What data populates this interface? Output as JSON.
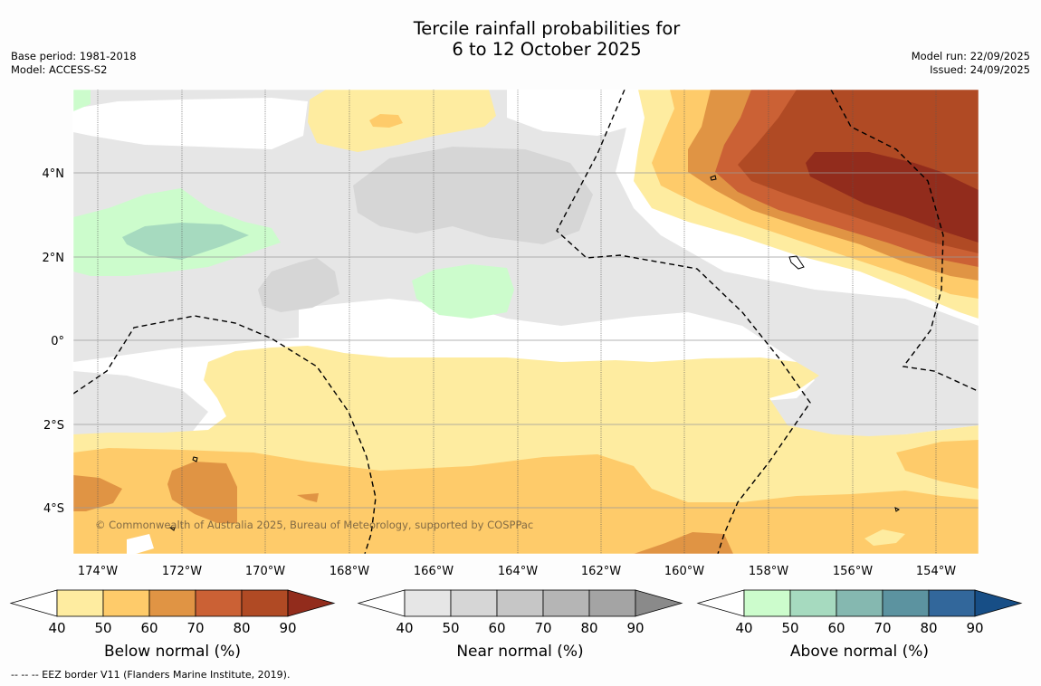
{
  "title": {
    "line1": "Tercile rainfall probabilities for",
    "line2": "6 to 12 October 2025"
  },
  "meta": {
    "base_period": "Base period: 1981-2018",
    "model": "Model: ACCESS-S2",
    "model_run": "Model run: 22/09/2025",
    "issued": "Issued: 24/09/2025"
  },
  "map": {
    "lon_ticks": [
      "174°W",
      "172°W",
      "170°W",
      "168°W",
      "166°W",
      "164°W",
      "162°W",
      "160°W",
      "158°W",
      "156°W",
      "154°W"
    ],
    "lat_ticks": [
      "4°N",
      "2°N",
      "0°",
      "2°S",
      "4°S"
    ],
    "copyright": "© Commonwealth of Australia 2025, Bureau of Meteorology, supported by COSPPac"
  },
  "colorbars": [
    {
      "name": "below",
      "label": "Below normal (%)",
      "ticks": [
        "40",
        "50",
        "60",
        "70",
        "80",
        "90"
      ],
      "colors": [
        "#feeca0",
        "#fecb6a",
        "#e09444",
        "#cb6135",
        "#b04a24",
        "#922c1c"
      ]
    },
    {
      "name": "near",
      "label": "Near normal (%)",
      "ticks": [
        "40",
        "50",
        "60",
        "70",
        "80",
        "90"
      ],
      "colors": [
        "#e6e6e6",
        "#d6d6d6",
        "#c6c6c6",
        "#b5b5b5",
        "#a4a4a4",
        "#8a8a8a"
      ]
    },
    {
      "name": "above",
      "label": "Above normal (%)",
      "ticks": [
        "40",
        "50",
        "60",
        "70",
        "80",
        "90"
      ],
      "colors": [
        "#ccfccc",
        "#a6dabf",
        "#85b8b0",
        "#5c93a0",
        "#32679b",
        "#174e86"
      ]
    }
  ],
  "footnote": "--  --  -- EEZ border V11 (Flanders Marine Institute, 2019)."
}
